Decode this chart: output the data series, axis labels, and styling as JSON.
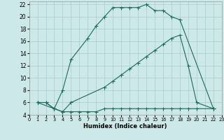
{
  "xlabel": "Humidex (Indice chaleur)",
  "bg_color": "#cce8e8",
  "grid_color": "#aacccc",
  "line_color": "#1a6b5a",
  "line1_x": [
    1,
    2,
    3,
    4,
    5,
    7,
    8,
    9,
    10,
    11,
    12,
    13,
    14,
    15,
    16,
    17,
    18,
    22
  ],
  "line1_y": [
    6,
    6,
    5,
    8,
    13,
    16.5,
    18.5,
    20,
    21.5,
    21.5,
    21.5,
    21.5,
    22,
    21,
    21,
    20,
    19.5,
    5
  ],
  "line2_x": [
    1,
    3,
    4,
    5,
    9,
    10,
    11,
    12,
    13,
    14,
    15,
    16,
    17,
    18,
    19,
    20,
    22
  ],
  "line2_y": [
    6,
    5,
    4.5,
    6,
    8.5,
    9.5,
    10.5,
    11.5,
    12.5,
    13.5,
    14.5,
    15.5,
    16.5,
    17,
    12,
    6,
    5
  ],
  "line3_x": [
    1,
    2,
    3,
    4,
    5,
    6,
    7,
    8,
    9,
    10,
    11,
    12,
    13,
    14,
    15,
    16,
    17,
    18,
    19,
    20,
    22
  ],
  "line3_y": [
    6,
    6,
    5,
    4.5,
    4.5,
    4.5,
    4.5,
    4.5,
    5,
    5,
    5,
    5,
    5,
    5,
    5,
    5,
    5,
    5,
    5,
    5,
    5
  ],
  "xlim": [
    0,
    23
  ],
  "ylim": [
    4,
    22.5
  ],
  "yticks": [
    4,
    6,
    8,
    10,
    12,
    14,
    16,
    18,
    20,
    22
  ],
  "xticks": [
    0,
    1,
    2,
    3,
    4,
    5,
    6,
    7,
    8,
    9,
    10,
    11,
    12,
    13,
    14,
    15,
    16,
    17,
    18,
    19,
    20,
    21,
    22,
    23
  ]
}
